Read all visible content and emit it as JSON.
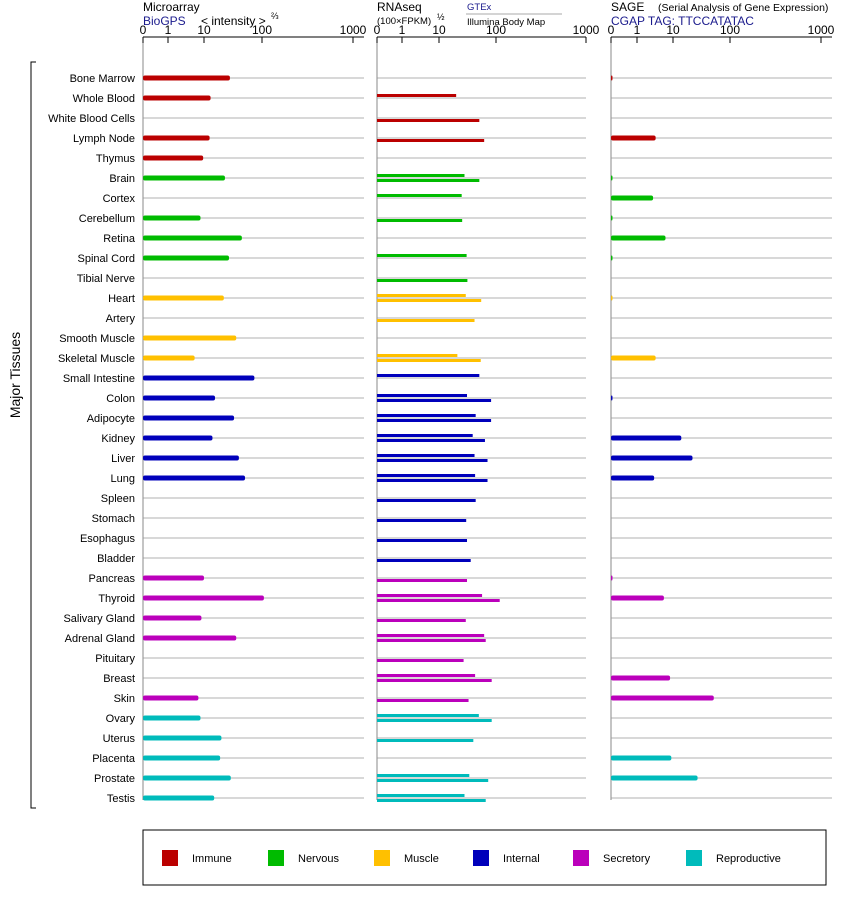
{
  "chart_data": {
    "type": "bar",
    "group_label": "Major Tissues",
    "colors": {
      "Immune": "#bb0000",
      "Nervous": "#00bb00",
      "Muscle": "#ffc000",
      "Internal": "#0000bb",
      "Secretory": "#bb00bb",
      "Reproductive": "#00bbbb"
    },
    "tissues": [
      {
        "name": "Bone Marrow",
        "system": "Immune"
      },
      {
        "name": "Whole Blood",
        "system": "Immune"
      },
      {
        "name": "White Blood Cells",
        "system": "Immune"
      },
      {
        "name": "Lymph Node",
        "system": "Immune"
      },
      {
        "name": "Thymus",
        "system": "Immune"
      },
      {
        "name": "Brain",
        "system": "Nervous"
      },
      {
        "name": "Cortex",
        "system": "Nervous"
      },
      {
        "name": "Cerebellum",
        "system": "Nervous"
      },
      {
        "name": "Retina",
        "system": "Nervous"
      },
      {
        "name": "Spinal Cord",
        "system": "Nervous"
      },
      {
        "name": "Tibial Nerve",
        "system": "Nervous"
      },
      {
        "name": "Heart",
        "system": "Muscle"
      },
      {
        "name": "Artery",
        "system": "Muscle"
      },
      {
        "name": "Smooth Muscle",
        "system": "Muscle"
      },
      {
        "name": "Skeletal Muscle",
        "system": "Muscle"
      },
      {
        "name": "Small Intestine",
        "system": "Internal"
      },
      {
        "name": "Colon",
        "system": "Internal"
      },
      {
        "name": "Adipocyte",
        "system": "Internal"
      },
      {
        "name": "Kidney",
        "system": "Internal"
      },
      {
        "name": "Liver",
        "system": "Internal"
      },
      {
        "name": "Lung",
        "system": "Internal"
      },
      {
        "name": "Spleen",
        "system": "Internal"
      },
      {
        "name": "Stomach",
        "system": "Internal"
      },
      {
        "name": "Esophagus",
        "system": "Internal"
      },
      {
        "name": "Bladder",
        "system": "Internal"
      },
      {
        "name": "Pancreas",
        "system": "Secretory"
      },
      {
        "name": "Thyroid",
        "system": "Secretory"
      },
      {
        "name": "Salivary Gland",
        "system": "Secretory"
      },
      {
        "name": "Adrenal Gland",
        "system": "Secretory"
      },
      {
        "name": "Pituitary",
        "system": "Secretory"
      },
      {
        "name": "Breast",
        "system": "Secretory"
      },
      {
        "name": "Skin",
        "system": "Secretory"
      },
      {
        "name": "Ovary",
        "system": "Reproductive"
      },
      {
        "name": "Uterus",
        "system": "Reproductive"
      },
      {
        "name": "Placenta",
        "system": "Reproductive"
      },
      {
        "name": "Prostate",
        "system": "Reproductive"
      },
      {
        "name": "Testis",
        "system": "Reproductive"
      }
    ],
    "panels": [
      {
        "id": "microarray",
        "title": "Microarray",
        "subtitle": "BioGPS",
        "axis_label": "< intensity >",
        "axis_exponent": "⅔",
        "transform_power": 0.6667,
        "ticks": [
          "0",
          "1",
          "10",
          "100",
          "1000"
        ],
        "tick_values": [
          0,
          1,
          10,
          100,
          1000
        ],
        "xlim": [
          0,
          1000
        ],
        "values": [
          [
            28
          ],
          [
            13
          ],
          [],
          [
            12.5
          ],
          [
            9.5
          ],
          [
            23
          ],
          [],
          [
            8
          ],
          [
            45
          ],
          [
            27
          ],
          [],
          [
            22
          ],
          [],
          [
            36
          ],
          [
            5.5
          ],
          [
            74
          ],
          [
            15.5
          ],
          [
            33
          ],
          [
            14
          ],
          [
            40
          ],
          [
            51
          ],
          [],
          [],
          [],
          [],
          [
            10
          ],
          [
            105
          ],
          [
            8.5
          ],
          [
            36
          ],
          [],
          [],
          [
            7
          ],
          [
            8
          ],
          [
            20
          ],
          [
            19
          ],
          [
            29
          ],
          [
            15
          ]
        ]
      },
      {
        "id": "rnaseq",
        "title": "RNAseq",
        "axis_label": "(100×FPKM)",
        "axis_exponent": "½",
        "sources": [
          "GTEx",
          "Illumina Body Map"
        ],
        "transform_power": 0.5,
        "ticks": [
          "0",
          "1",
          "10",
          "100",
          "1000"
        ],
        "tick_values": [
          0,
          1,
          10,
          100,
          1000
        ],
        "xlim": [
          0,
          1000
        ],
        "values": [
          [],
          [
            20
          ],
          [],
          [],
          [],
          [],
          [],
          [],
          [],
          [],
          [],
          [],
          [],
          [],
          [],
          [],
          [],
          [],
          [],
          [],
          [],
          [],
          [],
          [],
          [],
          [],
          [],
          [],
          [],
          [],
          [],
          [],
          [],
          [],
          [],
          [],
          []
        ],
        "values_split": [
          [
            null,
            null
          ],
          [
            20,
            null
          ],
          [
            null,
            51
          ],
          [
            null,
            62
          ],
          [
            null,
            null
          ],
          [
            28,
            51
          ],
          [
            25,
            null
          ],
          [
            null,
            25.5
          ],
          [
            null,
            null
          ],
          [
            30.5,
            null
          ],
          [
            null,
            31.5
          ],
          [
            29.5,
            55
          ],
          [
            null,
            42
          ],
          [
            null,
            null
          ],
          [
            21,
            54
          ],
          [
            51,
            null
          ],
          [
            31,
            82
          ],
          [
            44,
            82
          ],
          [
            39,
            64
          ],
          [
            42,
            71
          ],
          [
            43,
            71
          ],
          [
            null,
            44
          ],
          [
            null,
            30
          ],
          [
            null,
            31
          ],
          [
            null,
            36
          ],
          [
            null,
            31
          ],
          [
            57,
            110
          ],
          [
            null,
            29.5
          ],
          [
            62,
            66
          ],
          [
            null,
            27
          ],
          [
            43,
            84
          ],
          [
            null,
            33
          ],
          [
            50,
            84
          ],
          [
            null,
            40
          ],
          [
            null,
            null
          ],
          [
            34,
            73
          ],
          [
            28,
            66
          ]
        ]
      },
      {
        "id": "sage",
        "title": "SAGE",
        "subtitle_note": "(Serial Analysis of Gene Expression)",
        "subtitle": "CGAP TAG: TTCCATATAC",
        "transform_power": 0.5,
        "ticks": [
          "0",
          "1",
          "10",
          "100",
          "1000"
        ],
        "tick_values": [
          0,
          1,
          10,
          100,
          1000
        ],
        "xlim": [
          0,
          1000
        ],
        "values": [
          [
            0.02
          ],
          [],
          [],
          [
            3.3
          ],
          [],
          [
            0.03
          ],
          [
            2.8
          ],
          [
            0.02
          ],
          [
            6.2
          ],
          [
            0.03
          ],
          [],
          [
            0.005
          ],
          [],
          [],
          [
            3.3
          ],
          [],
          [
            0.03
          ],
          [],
          [
            14
          ],
          [
            22
          ],
          [
            3.0
          ],
          [],
          [],
          [],
          [],
          [
            0.03
          ],
          [
            5.6
          ],
          [],
          [],
          [],
          [
            8.3
          ],
          [
            52
          ],
          [],
          [],
          [
            9
          ],
          [
            27
          ],
          []
        ]
      }
    ],
    "legend": [
      "Immune",
      "Nervous",
      "Muscle",
      "Internal",
      "Secretory",
      "Reproductive"
    ]
  }
}
